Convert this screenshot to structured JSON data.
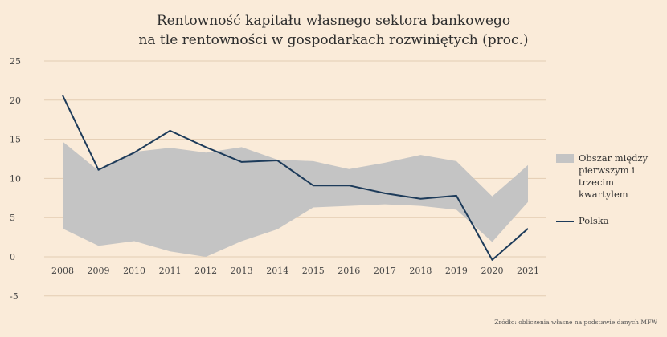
{
  "chart_data": {
    "type": "area",
    "title_lines": [
      "Rentowność kapitału własnego sektora bankowego",
      "na tle rentowności w gospodarkach rozwiniętych (proc.)"
    ],
    "xlabel": "",
    "ylabel": "",
    "x": [
      "2008",
      "2009",
      "2010",
      "2011",
      "2012",
      "2013",
      "2014",
      "2015",
      "2016",
      "2017",
      "2018",
      "2019",
      "2020",
      "2021"
    ],
    "yticks": [
      "25",
      "20",
      "15",
      "10",
      "5",
      "0",
      "-5"
    ],
    "ylim": [
      -5,
      25
    ],
    "grid": "horizontal",
    "legend_position": "right",
    "series": [
      {
        "name": "Obszar między pierwszym i trzecim kwartylem",
        "kind": "band",
        "color": "#c4c4c4",
        "lower": [
          3.6,
          1.4,
          2.0,
          0.7,
          0.0,
          2.0,
          3.5,
          6.3,
          6.5,
          6.7,
          6.5,
          6.0,
          1.9,
          7.0
        ],
        "upper": [
          14.7,
          11.0,
          13.4,
          13.9,
          13.3,
          14.0,
          12.4,
          12.2,
          11.2,
          12.0,
          13.0,
          12.2,
          7.7,
          11.7
        ]
      },
      {
        "name": "Polska",
        "kind": "line",
        "color": "#1d3b5a",
        "values": [
          20.6,
          11.1,
          13.3,
          16.1,
          14.0,
          12.1,
          12.3,
          9.1,
          9.1,
          8.1,
          7.4,
          7.8,
          -0.4,
          3.6
        ]
      }
    ],
    "legend": {
      "band_label_lines": [
        "Obszar między",
        "pierwszym i trzecim",
        "kwartylem"
      ],
      "line_label": "Polska"
    },
    "source": "Źródło: obliczenia własne na podstawie danych MFW"
  }
}
